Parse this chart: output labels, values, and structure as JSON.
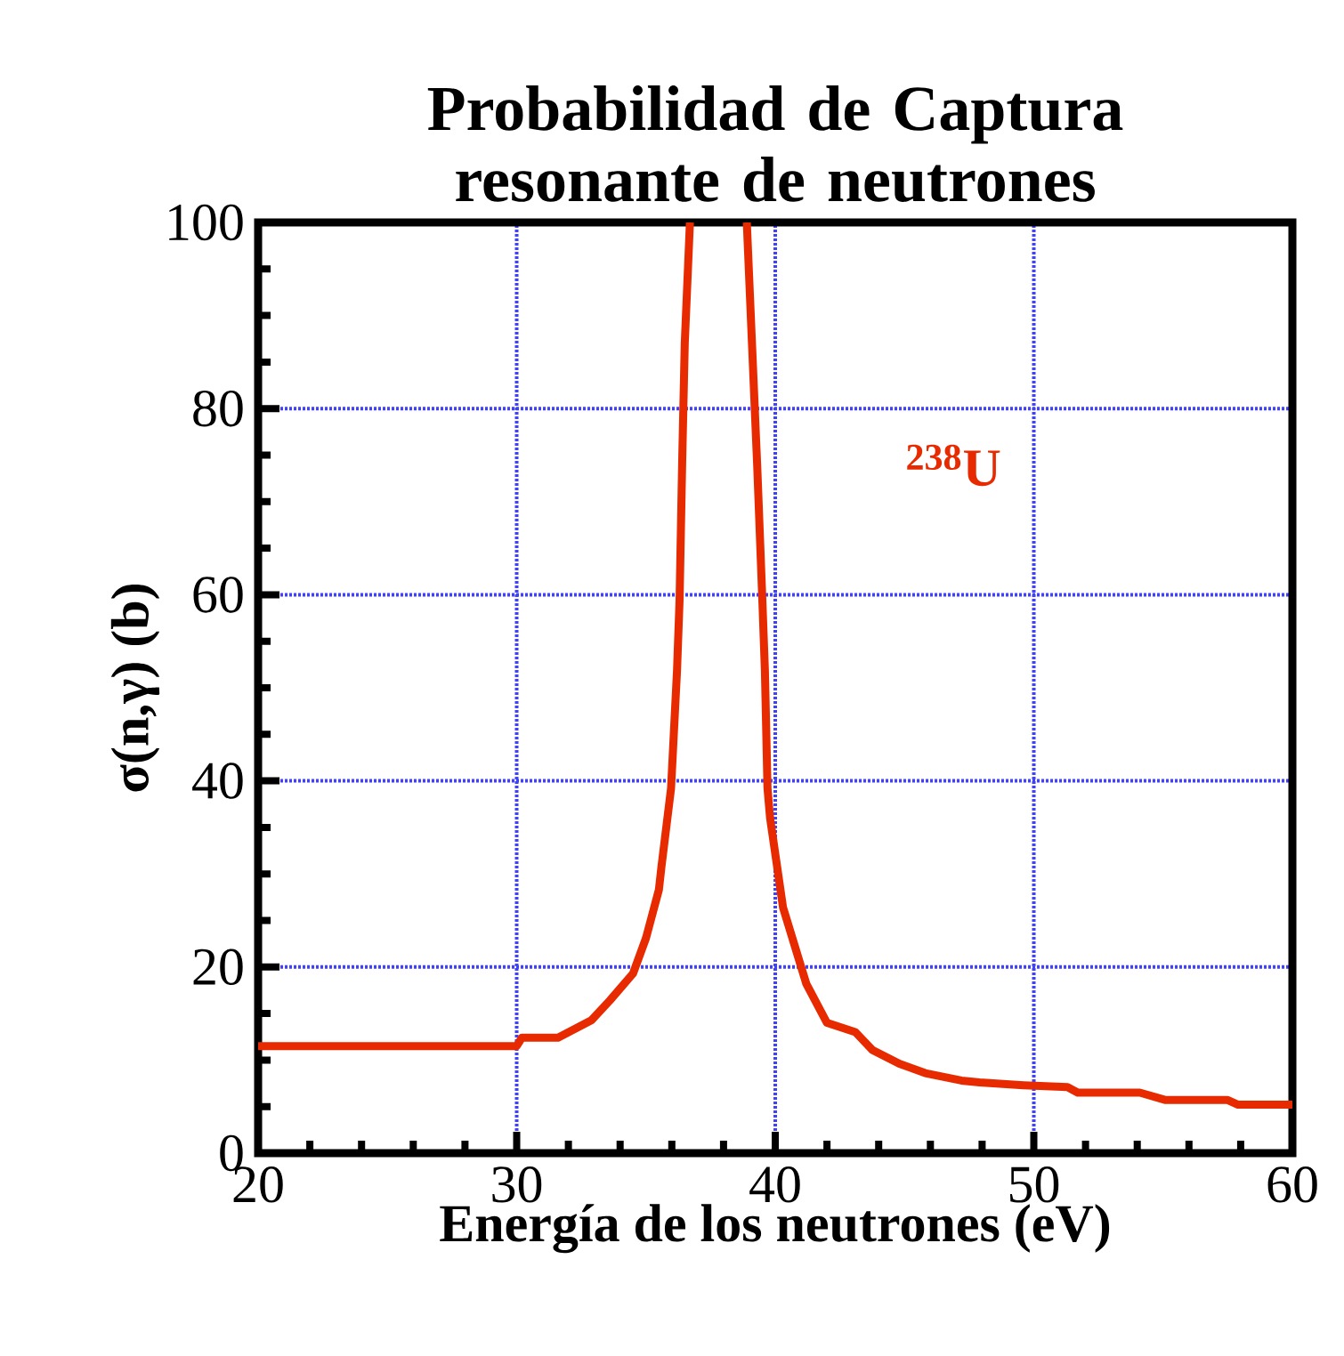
{
  "chart_data": {
    "type": "line",
    "title": "Probabilidad de Captura resonante de neutrones",
    "xlabel": "Energía de los neutrones (eV)",
    "ylabel": "σ(n,γ) (b)",
    "xlim": [
      20,
      60
    ],
    "ylim": [
      0,
      100
    ],
    "xticks": [
      20,
      30,
      40,
      50,
      60
    ],
    "yticks": [
      0,
      20,
      40,
      60,
      80,
      100
    ],
    "grid": true,
    "marker": "none",
    "line_style": "solid",
    "series": [
      {
        "name": "$^{238}$U",
        "color": "#e82a00",
        "x": [
          20,
          30,
          30.2,
          31.6,
          32.9,
          33.6,
          34.5,
          35.0,
          35.5,
          35.6,
          35.97,
          36.2,
          36.3,
          36.4,
          36.5,
          36.7,
          37.8,
          38.9,
          39.1,
          39.3,
          39.5,
          39.6,
          39.7,
          39.8,
          40.3,
          41.2,
          42.0,
          43.1,
          43.75,
          44.8,
          45.8,
          47.2,
          47.9,
          49.6,
          51.3,
          51.7,
          54.1,
          55.1,
          57.5,
          57.9,
          60
        ],
        "values": [
          11.5,
          11.5,
          12.4,
          12.4,
          14.3,
          16.4,
          19.3,
          23.1,
          28.3,
          30.8,
          39.2,
          51.8,
          59.5,
          74.2,
          87,
          100,
          null,
          100,
          87,
          74,
          59.5,
          51.8,
          39.2,
          36,
          26.4,
          18.2,
          14.0,
          13.0,
          11.1,
          9.6,
          8.6,
          7.8,
          7.6,
          7.3,
          7.1,
          6.5,
          6.5,
          5.7,
          5.7,
          5.2,
          5.2
        ]
      }
    ]
  }
}
